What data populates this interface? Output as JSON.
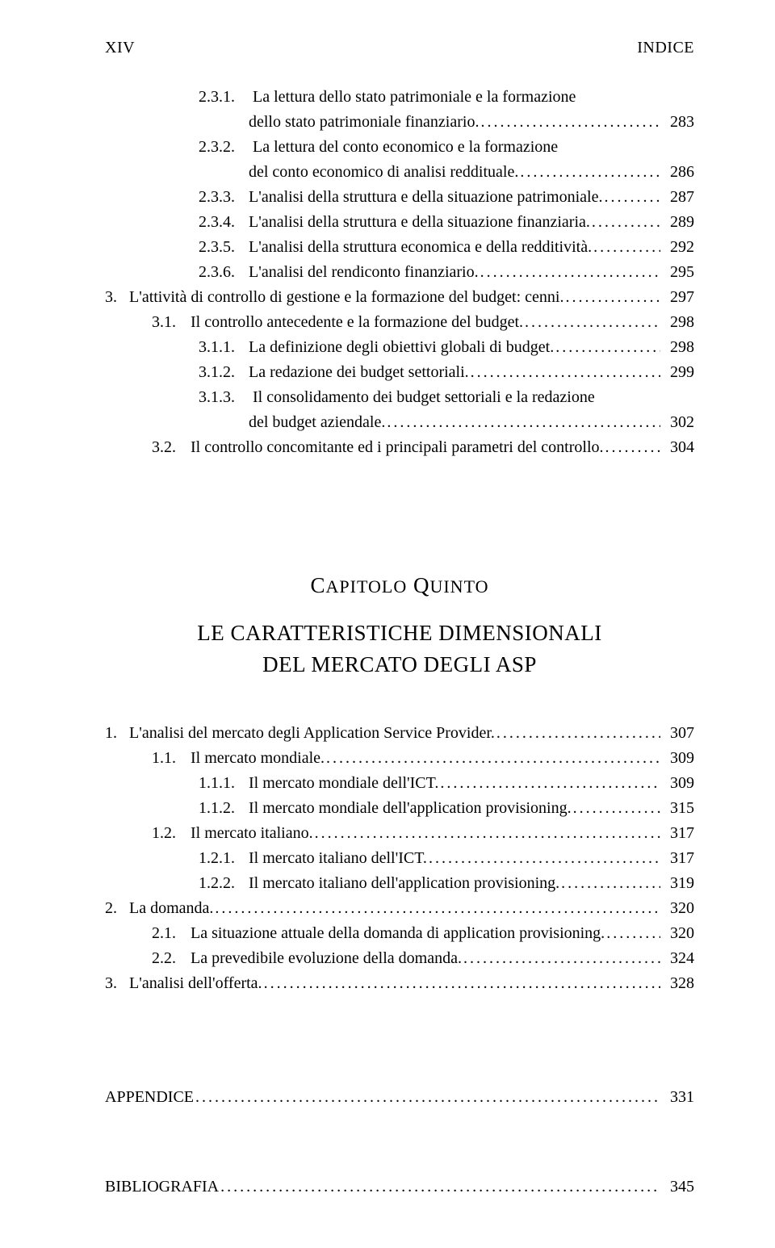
{
  "header": {
    "page_num": "XIV",
    "running": "INDICE"
  },
  "chapter": {
    "label_pre": "C",
    "label_rest_1": "APITOLO",
    "label_mid": " Q",
    "label_rest_2": "UINTO",
    "title_line1": "LE CARATTERISTICHE DIMENSIONALI",
    "title_line2": "DEL MERCATO DEGLI ASP"
  },
  "top": [
    {
      "n": "2.3.1.",
      "t1": "La lettura dello stato patrimoniale e la formazione",
      "t2": "dello stato patrimoniale finanziario.",
      "p": "283",
      "i": 2
    },
    {
      "n": "2.3.2.",
      "t1": "La lettura del conto economico e la formazione",
      "t2": "del conto economico di analisi reddituale.",
      "p": "286",
      "i": 2
    },
    {
      "n": "2.3.3.",
      "t1": "L'analisi della struttura e della situazione patrimoniale.",
      "p": "287",
      "i": 2
    },
    {
      "n": "2.3.4.",
      "t1": "L'analisi della struttura e della situazione finanziaria.",
      "p": "289",
      "i": 2
    },
    {
      "n": "2.3.5.",
      "t1": "L'analisi della struttura economica e della redditività.",
      "p": "292",
      "i": 2
    },
    {
      "n": "2.3.6.",
      "t1": "L'analisi del rendiconto finanziario.",
      "p": "295",
      "i": 2
    },
    {
      "n": "3.",
      "t1": "L'attività di controllo di gestione e la formazione del budget: cenni.",
      "p": "297",
      "i": 0
    },
    {
      "n": "3.1.",
      "t1": "Il controllo antecedente e la formazione del budget.",
      "p": "298",
      "i": 1
    },
    {
      "n": "3.1.1.",
      "t1": "La definizione degli obiettivi globali di budget.",
      "p": "298",
      "i": 2
    },
    {
      "n": "3.1.2.",
      "t1": "La redazione dei budget settoriali.",
      "p": "299",
      "i": 2
    },
    {
      "n": "3.1.3.",
      "t1": "Il consolidamento dei budget settoriali e la redazione",
      "t2": "del budget aziendale.",
      "p": "302",
      "i": 2
    },
    {
      "n": "3.2.",
      "t1": "Il controllo concomitante ed i principali parametri del controllo.",
      "p": "304",
      "i": 1
    }
  ],
  "bottom": [
    {
      "n": "1.",
      "t1": "L'analisi del mercato degli Application Service Provider.",
      "p": "307",
      "i": 0
    },
    {
      "n": "1.1.",
      "t1": "Il mercato mondiale.",
      "p": "309",
      "i": 1
    },
    {
      "n": "1.1.1.",
      "t1": "Il mercato mondiale dell'ICT.",
      "p": "309",
      "i": 2
    },
    {
      "n": "1.1.2.",
      "t1": "Il mercato mondiale dell'application provisioning.",
      "p": "315",
      "i": 2
    },
    {
      "n": "1.2.",
      "t1": "Il mercato italiano.",
      "p": "317",
      "i": 1
    },
    {
      "n": "1.2.1.",
      "t1": "Il mercato italiano dell'ICT.",
      "p": "317",
      "i": 2
    },
    {
      "n": "1.2.2.",
      "t1": "Il mercato italiano dell'application provisioning.",
      "p": "319",
      "i": 2
    },
    {
      "n": "2.",
      "t1": "La domanda.",
      "p": "320",
      "i": 0
    },
    {
      "n": "2.1.",
      "t1": "La situazione attuale della domanda di application provisioning.",
      "p": "320",
      "i": 1
    },
    {
      "n": "2.2.",
      "t1": "La prevedibile evoluzione della domanda.",
      "p": "324",
      "i": 1
    },
    {
      "n": "3.",
      "t1": "L'analisi dell'offerta.",
      "p": "328",
      "i": 0
    }
  ],
  "appendix": {
    "label": "APPENDICE",
    "p": "331"
  },
  "biblio": {
    "label": "BIBLIOGRAFIA",
    "p": "345"
  },
  "dots": "............................................................................................................................",
  "layout": {
    "indent_widths": [
      18,
      42,
      58
    ],
    "num_widths": [
      30,
      48,
      62
    ]
  }
}
